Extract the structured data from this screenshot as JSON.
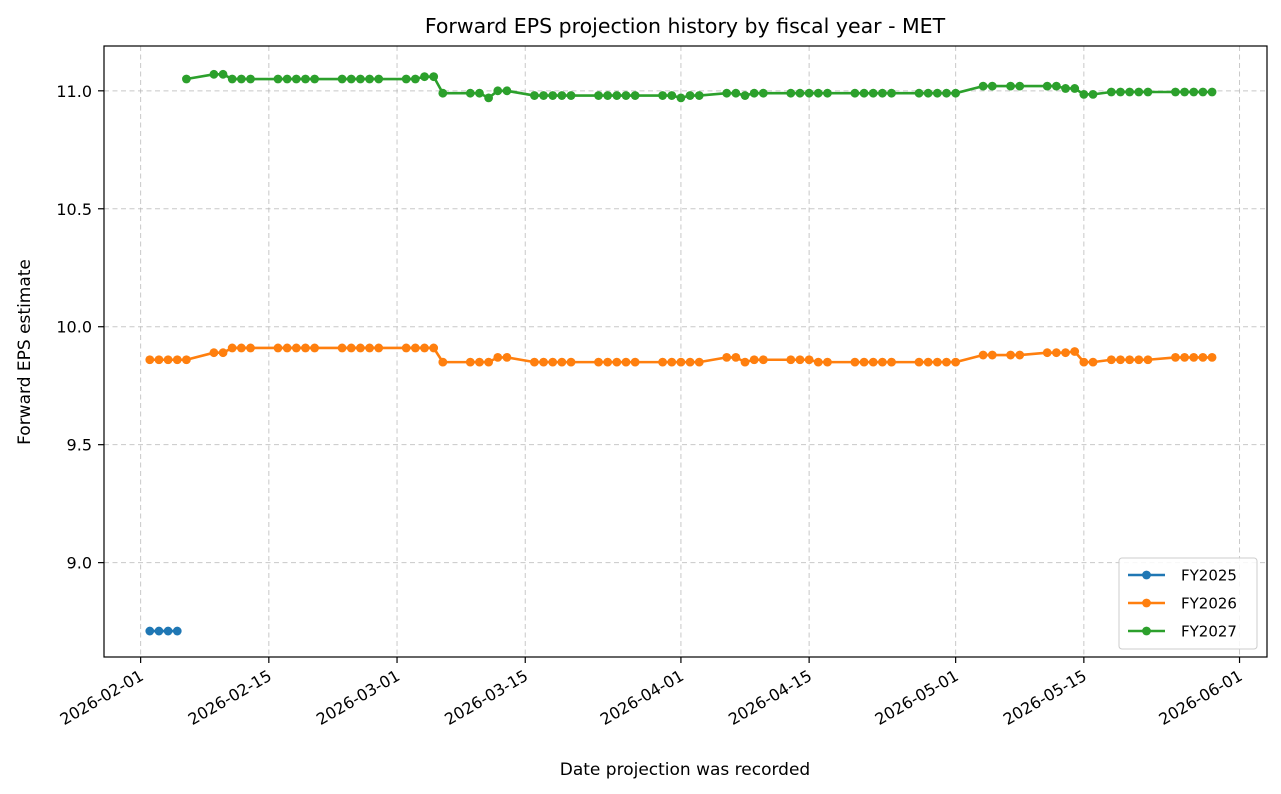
{
  "chart_data": {
    "type": "line",
    "title": "Forward EPS projection history by fiscal year - MET",
    "xlabel": "Date projection was recorded",
    "ylabel": "Forward EPS estimate",
    "x_type": "date",
    "xlim": [
      "2026-01-28",
      "2026-06-04"
    ],
    "ylim": [
      8.6,
      11.19
    ],
    "x_ticks": [
      "2026-02-01",
      "2026-02-15",
      "2026-03-01",
      "2026-03-15",
      "2026-04-01",
      "2026-04-15",
      "2026-05-01",
      "2026-05-15",
      "2026-06-01"
    ],
    "y_ticks": [
      9.0,
      9.5,
      10.0,
      10.5,
      11.0
    ],
    "y_tick_labels": [
      "9.0",
      "9.5",
      "10.0",
      "10.5",
      "11.0"
    ],
    "grid": true,
    "legend_position": "lower-right",
    "series": [
      {
        "name": "FY2025",
        "color": "#1f77b4",
        "points": [
          [
            "2026-02-02",
            8.71
          ],
          [
            "2026-02-03",
            8.71
          ],
          [
            "2026-02-04",
            8.71
          ],
          [
            "2026-02-05",
            8.71
          ]
        ]
      },
      {
        "name": "FY2026",
        "color": "#ff7f0e",
        "points": [
          [
            "2026-02-02",
            9.86
          ],
          [
            "2026-02-03",
            9.86
          ],
          [
            "2026-02-04",
            9.86
          ],
          [
            "2026-02-05",
            9.86
          ],
          [
            "2026-02-06",
            9.86
          ],
          [
            "2026-02-09",
            9.89
          ],
          [
            "2026-02-10",
            9.89
          ],
          [
            "2026-02-11",
            9.91
          ],
          [
            "2026-02-12",
            9.91
          ],
          [
            "2026-02-13",
            9.91
          ],
          [
            "2026-02-16",
            9.91
          ],
          [
            "2026-02-17",
            9.91
          ],
          [
            "2026-02-18",
            9.91
          ],
          [
            "2026-02-19",
            9.91
          ],
          [
            "2026-02-20",
            9.91
          ],
          [
            "2026-02-23",
            9.91
          ],
          [
            "2026-02-24",
            9.91
          ],
          [
            "2026-02-25",
            9.91
          ],
          [
            "2026-02-26",
            9.91
          ],
          [
            "2026-02-27",
            9.91
          ],
          [
            "2026-03-02",
            9.91
          ],
          [
            "2026-03-03",
            9.91
          ],
          [
            "2026-03-04",
            9.91
          ],
          [
            "2026-03-05",
            9.91
          ],
          [
            "2026-03-06",
            9.85
          ],
          [
            "2026-03-09",
            9.85
          ],
          [
            "2026-03-10",
            9.85
          ],
          [
            "2026-03-11",
            9.85
          ],
          [
            "2026-03-12",
            9.87
          ],
          [
            "2026-03-13",
            9.87
          ],
          [
            "2026-03-16",
            9.85
          ],
          [
            "2026-03-17",
            9.85
          ],
          [
            "2026-03-18",
            9.85
          ],
          [
            "2026-03-19",
            9.85
          ],
          [
            "2026-03-20",
            9.85
          ],
          [
            "2026-03-23",
            9.85
          ],
          [
            "2026-03-24",
            9.85
          ],
          [
            "2026-03-25",
            9.85
          ],
          [
            "2026-03-26",
            9.85
          ],
          [
            "2026-03-27",
            9.85
          ],
          [
            "2026-03-30",
            9.85
          ],
          [
            "2026-03-31",
            9.85
          ],
          [
            "2026-04-01",
            9.85
          ],
          [
            "2026-04-02",
            9.85
          ],
          [
            "2026-04-03",
            9.85
          ],
          [
            "2026-04-06",
            9.87
          ],
          [
            "2026-04-07",
            9.87
          ],
          [
            "2026-04-08",
            9.85
          ],
          [
            "2026-04-09",
            9.86
          ],
          [
            "2026-04-10",
            9.86
          ],
          [
            "2026-04-13",
            9.86
          ],
          [
            "2026-04-14",
            9.86
          ],
          [
            "2026-04-15",
            9.86
          ],
          [
            "2026-04-16",
            9.85
          ],
          [
            "2026-04-17",
            9.85
          ],
          [
            "2026-04-20",
            9.85
          ],
          [
            "2026-04-21",
            9.85
          ],
          [
            "2026-04-22",
            9.85
          ],
          [
            "2026-04-23",
            9.85
          ],
          [
            "2026-04-24",
            9.85
          ],
          [
            "2026-04-27",
            9.85
          ],
          [
            "2026-04-28",
            9.85
          ],
          [
            "2026-04-29",
            9.85
          ],
          [
            "2026-04-30",
            9.85
          ],
          [
            "2026-05-01",
            9.85
          ],
          [
            "2026-05-04",
            9.88
          ],
          [
            "2026-05-05",
            9.88
          ],
          [
            "2026-05-07",
            9.88
          ],
          [
            "2026-05-08",
            9.88
          ],
          [
            "2026-05-11",
            9.89
          ],
          [
            "2026-05-12",
            9.89
          ],
          [
            "2026-05-13",
            9.89
          ],
          [
            "2026-05-14",
            9.895
          ],
          [
            "2026-05-15",
            9.85
          ],
          [
            "2026-05-16",
            9.85
          ],
          [
            "2026-05-18",
            9.86
          ],
          [
            "2026-05-19",
            9.86
          ],
          [
            "2026-05-20",
            9.86
          ],
          [
            "2026-05-21",
            9.86
          ],
          [
            "2026-05-22",
            9.86
          ],
          [
            "2026-05-25",
            9.87
          ],
          [
            "2026-05-26",
            9.87
          ],
          [
            "2026-05-27",
            9.87
          ],
          [
            "2026-05-28",
            9.87
          ],
          [
            "2026-05-29",
            9.87
          ]
        ]
      },
      {
        "name": "FY2027",
        "color": "#2ca02c",
        "points": [
          [
            "2026-02-06",
            11.05
          ],
          [
            "2026-02-09",
            11.07
          ],
          [
            "2026-02-10",
            11.07
          ],
          [
            "2026-02-11",
            11.05
          ],
          [
            "2026-02-12",
            11.05
          ],
          [
            "2026-02-13",
            11.05
          ],
          [
            "2026-02-16",
            11.05
          ],
          [
            "2026-02-17",
            11.05
          ],
          [
            "2026-02-18",
            11.05
          ],
          [
            "2026-02-19",
            11.05
          ],
          [
            "2026-02-20",
            11.05
          ],
          [
            "2026-02-23",
            11.05
          ],
          [
            "2026-02-24",
            11.05
          ],
          [
            "2026-02-25",
            11.05
          ],
          [
            "2026-02-26",
            11.05
          ],
          [
            "2026-02-27",
            11.05
          ],
          [
            "2026-03-02",
            11.05
          ],
          [
            "2026-03-03",
            11.05
          ],
          [
            "2026-03-04",
            11.06
          ],
          [
            "2026-03-05",
            11.06
          ],
          [
            "2026-03-06",
            10.99
          ],
          [
            "2026-03-09",
            10.99
          ],
          [
            "2026-03-10",
            10.99
          ],
          [
            "2026-03-11",
            10.97
          ],
          [
            "2026-03-12",
            11.0
          ],
          [
            "2026-03-13",
            11.0
          ],
          [
            "2026-03-16",
            10.98
          ],
          [
            "2026-03-17",
            10.98
          ],
          [
            "2026-03-18",
            10.98
          ],
          [
            "2026-03-19",
            10.98
          ],
          [
            "2026-03-20",
            10.98
          ],
          [
            "2026-03-23",
            10.98
          ],
          [
            "2026-03-24",
            10.98
          ],
          [
            "2026-03-25",
            10.98
          ],
          [
            "2026-03-26",
            10.98
          ],
          [
            "2026-03-27",
            10.98
          ],
          [
            "2026-03-30",
            10.98
          ],
          [
            "2026-03-31",
            10.98
          ],
          [
            "2026-04-01",
            10.97
          ],
          [
            "2026-04-02",
            10.98
          ],
          [
            "2026-04-03",
            10.98
          ],
          [
            "2026-04-06",
            10.99
          ],
          [
            "2026-04-07",
            10.99
          ],
          [
            "2026-04-08",
            10.98
          ],
          [
            "2026-04-09",
            10.99
          ],
          [
            "2026-04-10",
            10.99
          ],
          [
            "2026-04-13",
            10.99
          ],
          [
            "2026-04-14",
            10.99
          ],
          [
            "2026-04-15",
            10.99
          ],
          [
            "2026-04-16",
            10.99
          ],
          [
            "2026-04-17",
            10.99
          ],
          [
            "2026-04-20",
            10.99
          ],
          [
            "2026-04-21",
            10.99
          ],
          [
            "2026-04-22",
            10.99
          ],
          [
            "2026-04-23",
            10.99
          ],
          [
            "2026-04-24",
            10.99
          ],
          [
            "2026-04-27",
            10.99
          ],
          [
            "2026-04-28",
            10.99
          ],
          [
            "2026-04-29",
            10.99
          ],
          [
            "2026-04-30",
            10.99
          ],
          [
            "2026-05-01",
            10.99
          ],
          [
            "2026-05-04",
            11.02
          ],
          [
            "2026-05-05",
            11.02
          ],
          [
            "2026-05-07",
            11.02
          ],
          [
            "2026-05-08",
            11.02
          ],
          [
            "2026-05-11",
            11.02
          ],
          [
            "2026-05-12",
            11.02
          ],
          [
            "2026-05-13",
            11.01
          ],
          [
            "2026-05-14",
            11.01
          ],
          [
            "2026-05-15",
            10.985
          ],
          [
            "2026-05-16",
            10.985
          ],
          [
            "2026-05-18",
            10.995
          ],
          [
            "2026-05-19",
            10.995
          ],
          [
            "2026-05-20",
            10.995
          ],
          [
            "2026-05-21",
            10.995
          ],
          [
            "2026-05-22",
            10.995
          ],
          [
            "2026-05-25",
            10.995
          ],
          [
            "2026-05-26",
            10.995
          ],
          [
            "2026-05-27",
            10.995
          ],
          [
            "2026-05-28",
            10.995
          ],
          [
            "2026-05-29",
            10.995
          ]
        ]
      }
    ]
  }
}
